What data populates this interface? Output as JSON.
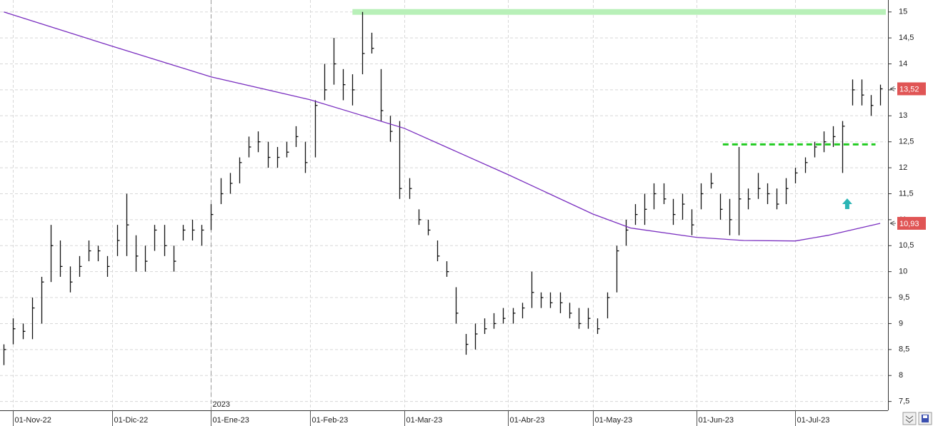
{
  "chart_data": {
    "type": "ohlc",
    "xlim": [
      -0.8,
      187.2
    ],
    "ylim": [
      7.33,
      15.23
    ],
    "yticks": [
      {
        "value": 7.5,
        "label": "7,5"
      },
      8,
      {
        "value": 8.5,
        "label": "8,5"
      },
      9,
      {
        "value": 9.5,
        "label": "9,5"
      },
      10,
      {
        "value": 10.5,
        "label": "10,5"
      },
      11,
      {
        "value": 11.5,
        "label": "11,5"
      },
      12,
      {
        "value": 12.5,
        "label": "12,5"
      },
      13,
      {
        "value": 13.5,
        "label": "13,5"
      },
      14,
      {
        "value": 14.5,
        "label": "14,5"
      },
      15
    ],
    "xticks": [
      {
        "value": 2,
        "label": "01-Nov-22"
      },
      {
        "value": 23,
        "label": "01-Dic-22"
      },
      {
        "value": 44,
        "label": "01-Ene-23"
      },
      {
        "value": 65,
        "label": "01-Feb-23"
      },
      {
        "value": 85,
        "label": "01-Mar-23"
      },
      {
        "value": 107,
        "label": "01-Abr-23"
      },
      {
        "value": 125,
        "label": "01-May-23"
      },
      {
        "value": 147,
        "label": "01-Jun-23"
      },
      {
        "value": 168,
        "label": "01-Jul-23"
      }
    ],
    "year_marker": {
      "x": 44,
      "label": "2023"
    },
    "grid": true,
    "bar_color": "#111111",
    "x": [
      0,
      2,
      4,
      6,
      8,
      10,
      12,
      14,
      16,
      18,
      20,
      22,
      24,
      26,
      28,
      30,
      32,
      34,
      36,
      38,
      40,
      42,
      44,
      46,
      48,
      50,
      52,
      54,
      56,
      58,
      60,
      62,
      64,
      66,
      68,
      70,
      72,
      74,
      76,
      78,
      80,
      82,
      84,
      86,
      88,
      90,
      92,
      94,
      96,
      98,
      100,
      102,
      104,
      106,
      108,
      110,
      112,
      114,
      116,
      118,
      120,
      122,
      124,
      126,
      128,
      130,
      132,
      134,
      136,
      138,
      140,
      142,
      144,
      146,
      148,
      150,
      152,
      154,
      156,
      158,
      160,
      162,
      164,
      166,
      168,
      170,
      172,
      174,
      176,
      178,
      180,
      182,
      184,
      186
    ],
    "high": [
      8.6,
      9.1,
      9.0,
      9.5,
      9.9,
      10.9,
      10.6,
      10.1,
      10.3,
      10.6,
      10.5,
      10.3,
      10.9,
      11.5,
      10.7,
      10.5,
      10.9,
      10.9,
      10.5,
      10.9,
      11.0,
      10.9,
      11.3,
      11.8,
      11.9,
      12.2,
      12.6,
      12.7,
      12.5,
      12.4,
      12.5,
      12.8,
      12.5,
      13.3,
      14.0,
      14.5,
      13.9,
      13.8,
      15.0,
      14.6,
      13.9,
      13.0,
      12.9,
      11.8,
      11.2,
      11.0,
      10.6,
      10.2,
      9.7,
      8.8,
      9.0,
      9.1,
      9.2,
      9.3,
      9.3,
      9.4,
      10.0,
      9.6,
      9.6,
      9.6,
      9.4,
      9.3,
      9.3,
      9.1,
      9.6,
      10.5,
      11.0,
      11.3,
      11.5,
      11.7,
      11.7,
      11.4,
      11.5,
      11.2,
      11.7,
      11.9,
      11.5,
      11.4,
      12.4,
      11.6,
      11.9,
      11.7,
      11.6,
      11.8,
      12.0,
      12.2,
      12.5,
      12.7,
      12.8,
      12.9,
      13.7,
      13.7,
      13.4,
      13.6
    ],
    "low": [
      8.2,
      8.6,
      8.7,
      8.7,
      9.0,
      9.8,
      9.9,
      9.6,
      9.9,
      10.2,
      10.2,
      9.9,
      10.3,
      10.3,
      10.0,
      10.0,
      10.4,
      10.3,
      10.0,
      10.6,
      10.6,
      10.5,
      10.8,
      11.3,
      11.5,
      11.7,
      12.2,
      12.3,
      12.0,
      12.0,
      12.2,
      12.4,
      11.9,
      12.2,
      13.3,
      13.6,
      13.3,
      13.2,
      13.8,
      14.2,
      12.9,
      12.5,
      11.4,
      11.4,
      10.9,
      10.7,
      10.2,
      9.9,
      9.0,
      8.4,
      8.5,
      8.8,
      8.9,
      9.0,
      9.0,
      9.1,
      9.3,
      9.3,
      9.3,
      9.2,
      9.1,
      8.9,
      8.9,
      8.8,
      9.1,
      9.6,
      10.5,
      10.9,
      10.9,
      11.2,
      11.3,
      10.9,
      11.0,
      10.7,
      11.2,
      11.6,
      11.0,
      10.7,
      10.7,
      11.2,
      11.4,
      11.3,
      11.2,
      11.3,
      11.7,
      11.9,
      12.2,
      12.3,
      12.4,
      11.9,
      13.2,
      13.2,
      13.0,
      13.2
    ],
    "close": [
      8.5,
      8.9,
      8.85,
      9.3,
      9.8,
      10.5,
      10.1,
      9.8,
      10.1,
      10.4,
      10.4,
      10.1,
      10.6,
      10.9,
      10.3,
      10.2,
      10.8,
      10.5,
      10.2,
      10.8,
      10.8,
      10.8,
      11.1,
      11.5,
      11.7,
      12.1,
      12.4,
      12.5,
      12.2,
      12.2,
      12.3,
      12.6,
      12.1,
      13.2,
      13.5,
      14.0,
      13.6,
      13.5,
      14.2,
      14.3,
      13.1,
      12.7,
      11.6,
      11.6,
      11.0,
      10.8,
      10.3,
      10.0,
      9.2,
      8.6,
      8.8,
      8.9,
      9.0,
      9.1,
      9.2,
      9.3,
      9.6,
      9.5,
      9.4,
      9.4,
      9.2,
      9.0,
      9.1,
      8.9,
      9.5,
      10.4,
      10.8,
      11.1,
      11.2,
      11.5,
      11.4,
      11.1,
      11.3,
      10.9,
      11.5,
      11.7,
      11.2,
      11.0,
      11.4,
      11.4,
      11.6,
      11.5,
      11.3,
      11.6,
      11.9,
      12.1,
      12.4,
      12.5,
      12.6,
      12.8,
      13.5,
      13.4,
      13.2,
      13.52
    ],
    "ma": {
      "color": "#7a2fc0",
      "x": [
        0,
        23,
        44,
        65,
        85,
        107,
        125,
        133,
        147,
        157,
        168,
        175,
        186
      ],
      "values": [
        15.0,
        14.34,
        13.75,
        13.31,
        12.76,
        11.87,
        11.11,
        10.84,
        10.66,
        10.6,
        10.59,
        10.7,
        10.93
      ]
    },
    "levels": [
      {
        "y": 15,
        "x": [
          74,
          187.2
        ],
        "color": "#b8f0b8",
        "style": "solid"
      },
      {
        "y": 12.45,
        "x": [
          152.6,
          185
        ],
        "color": "#22cc22",
        "style": "dashed"
      }
    ],
    "arrow": {
      "x": 179,
      "y": 11.3,
      "color": "#2bb5b5"
    },
    "price_labels": [
      {
        "value": 13.52,
        "label": "13,52",
        "color": "#e05555"
      },
      {
        "value": 10.93,
        "label": "10,93",
        "color": "#e05555"
      }
    ]
  }
}
